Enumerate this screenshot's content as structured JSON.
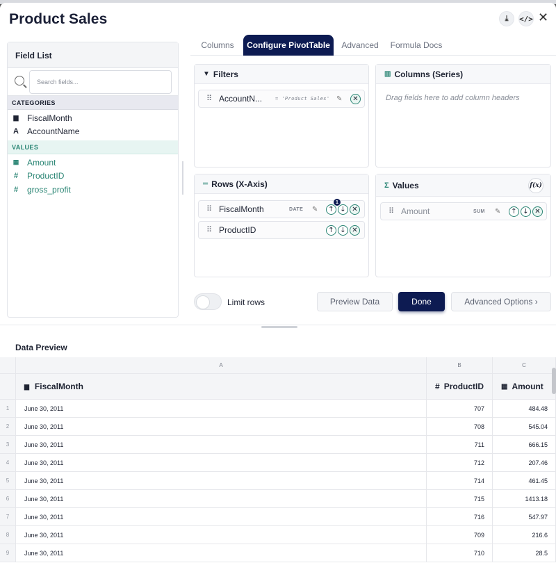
{
  "header": {
    "title": "Product Sales",
    "download_icon": "download-icon",
    "code_icon": "code-icon",
    "close_icon": "close-icon"
  },
  "field_list": {
    "title": "Field List",
    "search_placeholder": "Search fields...",
    "categories_label": "CATEGORIES",
    "categories": [
      {
        "icon": "calendar-icon",
        "label": "FiscalMonth"
      },
      {
        "icon": "text-type-icon",
        "label": "AccountName"
      }
    ],
    "values_label": "VALUES",
    "values": [
      {
        "icon": "calculator-icon",
        "label": "Amount"
      },
      {
        "icon": "hash-icon",
        "label": "ProductID"
      },
      {
        "icon": "hash-icon",
        "label": "gross_profit"
      }
    ]
  },
  "tabs": [
    {
      "label": "Columns",
      "active": false
    },
    {
      "label": "Configure PivotTable",
      "active": true
    },
    {
      "label": "Advanced",
      "active": false
    },
    {
      "label": "Formula Docs",
      "active": false
    }
  ],
  "filters": {
    "title": "Filters",
    "items": [
      {
        "label": "AccountN...",
        "meta": "= 'Product Sales'"
      }
    ]
  },
  "columns_series": {
    "title": "Columns (Series)",
    "hint": "Drag fields here to add column headers"
  },
  "rows": {
    "title": "Rows (X-Axis)",
    "items": [
      {
        "label": "FiscalMonth",
        "meta": "DATE",
        "badge": "1"
      },
      {
        "label": "ProductID",
        "meta": ""
      }
    ]
  },
  "values_panel": {
    "title": "Values",
    "fx_label": "f(x)",
    "items": [
      {
        "label": "Amount",
        "meta": "SUM"
      }
    ]
  },
  "controls": {
    "limit_rows_label": "Limit rows",
    "limit_rows_on": false,
    "preview_button": "Preview Data",
    "done_button": "Done",
    "advanced_button": "Advanced Options ›"
  },
  "data_preview": {
    "title": "Data Preview",
    "column_letters": [
      "A",
      "B",
      "C"
    ],
    "columns": [
      {
        "icon": "calendar-icon",
        "label": "FiscalMonth"
      },
      {
        "icon": "hash-icon",
        "label": "ProductID"
      },
      {
        "icon": "calculator-icon",
        "label": "Amount"
      }
    ],
    "rows": [
      {
        "n": "1",
        "month": "June 30, 2011",
        "pid": "707",
        "amount": "484.48"
      },
      {
        "n": "2",
        "month": "June 30, 2011",
        "pid": "708",
        "amount": "545.04"
      },
      {
        "n": "3",
        "month": "June 30, 2011",
        "pid": "711",
        "amount": "666.15"
      },
      {
        "n": "4",
        "month": "June 30, 2011",
        "pid": "712",
        "amount": "207.46"
      },
      {
        "n": "5",
        "month": "June 30, 2011",
        "pid": "714",
        "amount": "461.45"
      },
      {
        "n": "6",
        "month": "June 30, 2011",
        "pid": "715",
        "amount": "1413.18"
      },
      {
        "n": "7",
        "month": "June 30, 2011",
        "pid": "716",
        "amount": "547.97"
      },
      {
        "n": "8",
        "month": "June 30, 2011",
        "pid": "709",
        "amount": "216.6"
      },
      {
        "n": "9",
        "month": "June 30, 2011",
        "pid": "710",
        "amount": "28.5"
      }
    ]
  }
}
